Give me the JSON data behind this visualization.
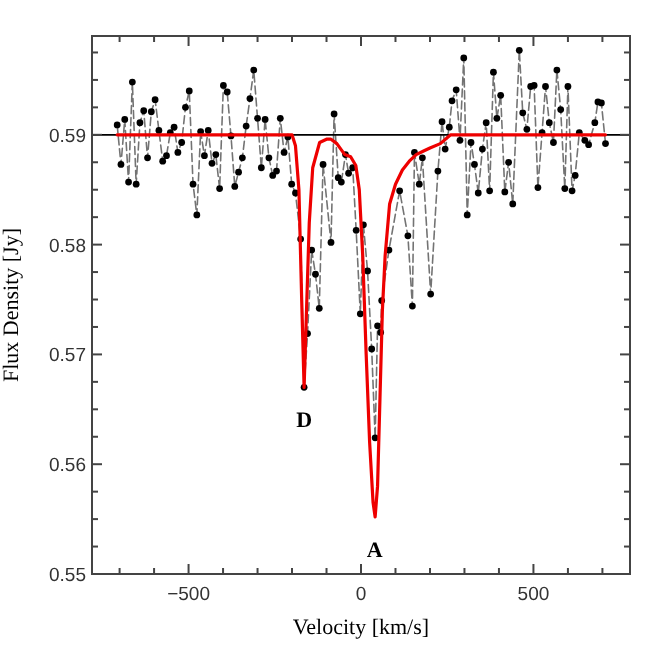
{
  "chart_data": {
    "type": "line",
    "xlabel": "Velocity [km/s]",
    "ylabel": "Flux Density [Jy]",
    "xlim": [
      -780,
      780
    ],
    "ylim": [
      0.55,
      0.599
    ],
    "xticks": [
      {
        "value": -700,
        "label": null
      },
      {
        "value": -600,
        "label": null
      },
      -500,
      {
        "value": -400,
        "label": null
      },
      {
        "value": -300,
        "label": null
      },
      {
        "value": -200,
        "label": null
      },
      {
        "value": -100,
        "label": null
      },
      0,
      {
        "value": 100,
        "label": null
      },
      {
        "value": 200,
        "label": null
      },
      {
        "value": 300,
        "label": null
      },
      {
        "value": 400,
        "label": null
      },
      500,
      {
        "value": 600,
        "label": null
      },
      {
        "value": 700,
        "label": null
      }
    ],
    "yticks": [
      0.55,
      {
        "value": 0.5525,
        "label": null
      },
      {
        "value": 0.555,
        "label": null
      },
      {
        "value": 0.5575,
        "label": null
      },
      0.56,
      {
        "value": 0.5625,
        "label": null
      },
      {
        "value": 0.565,
        "label": null
      },
      {
        "value": 0.5675,
        "label": null
      },
      0.57,
      {
        "value": 0.5725,
        "label": null
      },
      {
        "value": 0.575,
        "label": null
      },
      {
        "value": 0.5775,
        "label": null
      },
      0.58,
      {
        "value": 0.5825,
        "label": null
      },
      {
        "value": 0.585,
        "label": null
      },
      {
        "value": 0.5875,
        "label": null
      },
      0.59,
      {
        "value": 0.5925,
        "label": null
      },
      {
        "value": 0.595,
        "label": null
      },
      {
        "value": 0.5975,
        "label": null
      }
    ],
    "grid": false,
    "ref_lines": [
      {
        "axis": "y",
        "value": 0.59,
        "color": "#000000"
      }
    ],
    "annotations": [
      {
        "text": "D",
        "x": -165,
        "y": 0.567
      },
      {
        "text": "A",
        "x": 40,
        "y": 0.5552
      }
    ],
    "series": [
      {
        "color": "#000000",
        "marker": "circle",
        "line_style": "dashed",
        "x": [
          -707,
          -696,
          -685,
          -674,
          -663,
          -652,
          -641,
          -630,
          -619,
          -608,
          -597,
          -586,
          -575,
          -564,
          -553,
          -542,
          -531,
          -520,
          -509,
          -498,
          -487,
          -476,
          -465,
          -454,
          -443,
          -432,
          -421,
          -410,
          -399,
          -388,
          -377,
          -366,
          -355,
          -344,
          -333,
          -322,
          -311,
          -300,
          -289,
          -278,
          -267,
          -256,
          -245,
          -234,
          -223,
          -212,
          -201,
          -190,
          -175,
          -165,
          -155,
          -143,
          -132,
          -121,
          -110,
          -87,
          -78,
          -66,
          -57,
          -45,
          -36,
          -24,
          -14,
          -2,
          7,
          19,
          31,
          41,
          48,
          57,
          60,
          81,
          112,
          136,
          149,
          155,
          169,
          178,
          202,
          223,
          235,
          244,
          256,
          264,
          276,
          287,
          298,
          308,
          319,
          329,
          340,
          352,
          363,
          373,
          384,
          394,
          405,
          417,
          428,
          440,
          459,
          469,
          481,
          492,
          502,
          513,
          525,
          535,
          546,
          558,
          568,
          579,
          591,
          600,
          612,
          621,
          633,
          649,
          660,
          678,
          687,
          697,
          709
        ],
        "values": [
          0.5909,
          0.5873,
          0.5914,
          0.5857,
          0.5948,
          0.5855,
          0.5911,
          0.5922,
          0.5879,
          0.5921,
          0.5932,
          0.5904,
          0.5876,
          0.5881,
          0.5902,
          0.5907,
          0.5884,
          0.5893,
          0.5925,
          0.594,
          0.5855,
          0.5827,
          0.5903,
          0.5881,
          0.5904,
          0.5874,
          0.5882,
          0.5851,
          0.5945,
          0.5939,
          0.5899,
          0.5853,
          0.5866,
          0.5879,
          0.5908,
          0.5933,
          0.5959,
          0.5915,
          0.587,
          0.5914,
          0.5879,
          0.5863,
          0.5867,
          0.5915,
          0.5884,
          0.5898,
          0.5855,
          0.5847,
          0.5805,
          0.567,
          0.5719,
          0.5795,
          0.5773,
          0.5742,
          0.5873,
          0.5802,
          0.5919,
          0.5861,
          0.5857,
          0.5882,
          0.5865,
          0.587,
          0.5813,
          0.5737,
          0.5818,
          0.5776,
          0.5705,
          0.5624,
          0.5726,
          0.572,
          0.5749,
          0.5795,
          0.5849,
          0.5808,
          0.5744,
          0.5884,
          0.5855,
          0.5879,
          0.5755,
          0.5867,
          0.5912,
          0.5887,
          0.5907,
          0.5931,
          0.5941,
          0.5895,
          0.597,
          0.5827,
          0.5893,
          0.5873,
          0.5847,
          0.5887,
          0.5911,
          0.5849,
          0.5957,
          0.5915,
          0.5936,
          0.5848,
          0.5875,
          0.5837,
          0.5977,
          0.592,
          0.5905,
          0.5944,
          0.5945,
          0.5852,
          0.5902,
          0.5944,
          0.5911,
          0.5893,
          0.5959,
          0.5923,
          0.5851,
          0.5944,
          0.5849,
          0.5863,
          0.5902,
          0.5895,
          0.5891,
          0.5911,
          0.593,
          0.5929,
          0.5892
        ]
      },
      {
        "color": "#ee0000",
        "marker": "none",
        "line_style": "solid",
        "x": [
          -707,
          -200,
          -190,
          -180,
          -172,
          -165,
          -158,
          -150,
          -140,
          -120,
          -100,
          -87,
          -70,
          -47,
          -30,
          -15,
          -5,
          5,
          15,
          25,
          35,
          41,
          48,
          55,
          62,
          70,
          83,
          100,
          120,
          140,
          160,
          180,
          200,
          230,
          260,
          709
        ],
        "values": [
          0.59,
          0.59,
          0.589,
          0.585,
          0.575,
          0.567,
          0.574,
          0.582,
          0.587,
          0.5893,
          0.5896,
          0.5896,
          0.5892,
          0.5882,
          0.588,
          0.5872,
          0.585,
          0.579,
          0.57,
          0.562,
          0.5565,
          0.5552,
          0.558,
          0.566,
          0.574,
          0.579,
          0.5837,
          0.5855,
          0.5868,
          0.5876,
          0.5882,
          0.5885,
          0.5888,
          0.5892,
          0.59,
          0.59
        ]
      }
    ]
  }
}
